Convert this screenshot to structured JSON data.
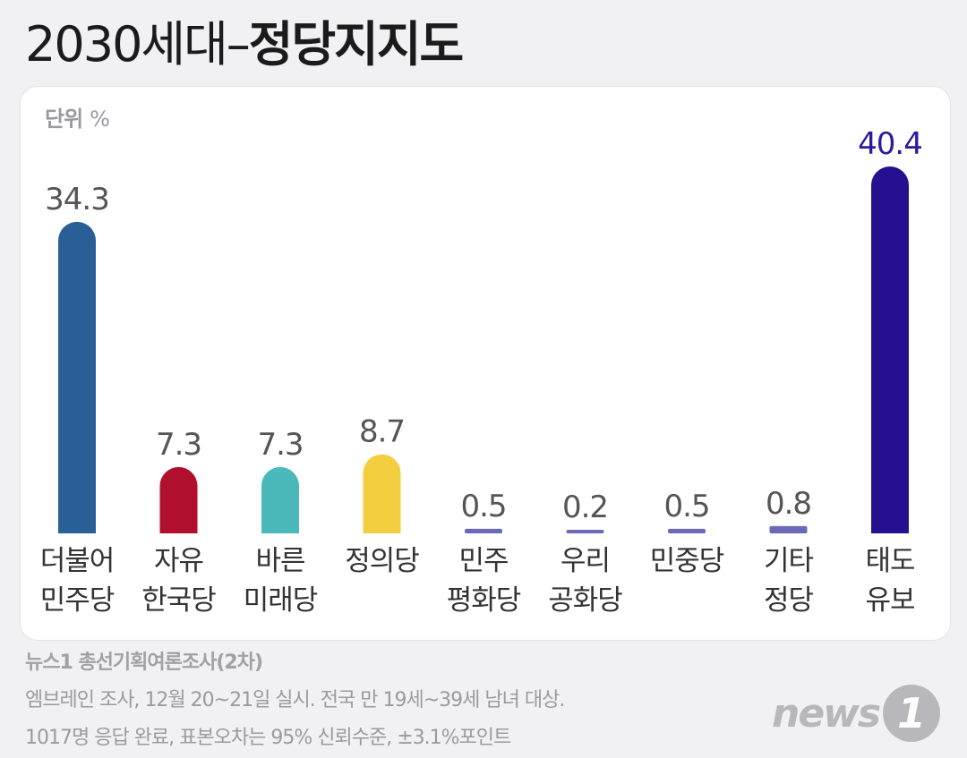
{
  "title": {
    "part1": "2030세대–",
    "part2": "정당지지도"
  },
  "unit": {
    "label": "단위",
    "value": "%"
  },
  "chart_data": {
    "type": "bar",
    "title": "2030세대–정당지지도",
    "ylabel": "단위 %",
    "categories": [
      [
        "더불어",
        "민주당"
      ],
      [
        "자유",
        "한국당"
      ],
      [
        "바른",
        "미래당"
      ],
      [
        "정의당"
      ],
      [
        "민주",
        "평화당"
      ],
      [
        "우리",
        "공화당"
      ],
      [
        "민중당"
      ],
      [
        "기타",
        "정당"
      ],
      [
        "태도",
        "유보"
      ]
    ],
    "values": [
      34.3,
      7.3,
      7.3,
      8.7,
      0.5,
      0.2,
      0.5,
      0.8,
      40.4
    ],
    "value_labels": [
      "34.3",
      "7.3",
      "7.3",
      "8.7",
      "0.5",
      "0.2",
      "0.5",
      "0.8",
      "40.4"
    ],
    "colors": [
      "#2a5e96",
      "#b0102e",
      "#4bb8b9",
      "#f3cf3f",
      "#6a6ab8",
      "#6a6ab8",
      "#6a6ab8",
      "#6a6ab8",
      "#27108f"
    ],
    "value_label_colors": [
      "#555555",
      "#555555",
      "#555555",
      "#555555",
      "#555555",
      "#555555",
      "#555555",
      "#555555",
      "#2a1aa0"
    ],
    "ylim": [
      0,
      40.4
    ],
    "grid": false,
    "legend": "none"
  },
  "footer": {
    "title": "뉴스1 총선기획여론조사(2차)",
    "line1": "엠브레인 조사, 12월 20~21일 실시. 전국 만 19세~39세 남녀 대상.",
    "line2": "1017명 응답 완료, 표본오차는 95% 신뢰수준, ±3.1%포인트"
  },
  "logo": {
    "text": "news",
    "mark": "1"
  }
}
